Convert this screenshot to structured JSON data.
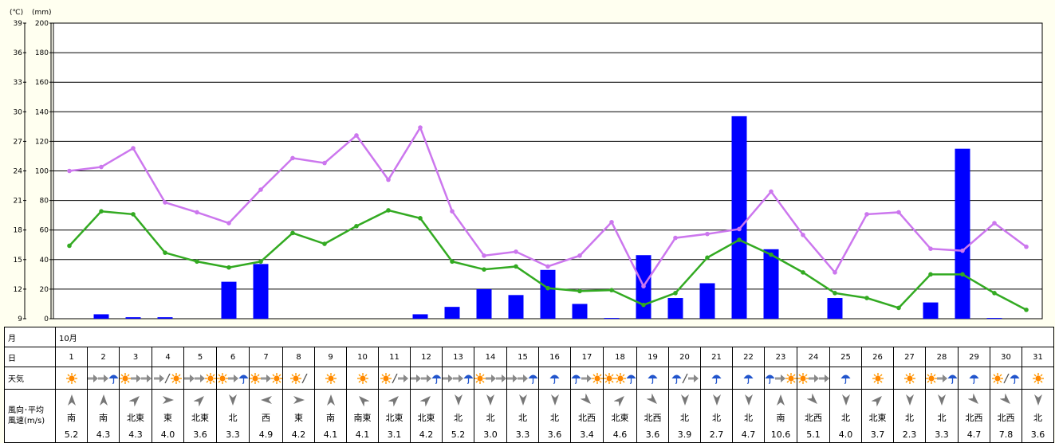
{
  "chart_data": {
    "type": "bar+line",
    "y_left_unit": "(℃)",
    "y_right_unit": "(mm)",
    "y_left_ticks": [
      9,
      12,
      15,
      18,
      21,
      24,
      27,
      30,
      33,
      36,
      39
    ],
    "y_right_ticks": [
      0,
      20,
      40,
      60,
      80,
      100,
      120,
      140,
      160,
      180,
      200
    ],
    "y_left_range": [
      9,
      39
    ],
    "y_right_range": [
      0,
      200
    ],
    "grid": true,
    "categories": [
      "1",
      "2",
      "3",
      "4",
      "5",
      "6",
      "7",
      "8",
      "9",
      "10",
      "11",
      "12",
      "13",
      "14",
      "15",
      "16",
      "17",
      "18",
      "19",
      "20",
      "21",
      "22",
      "23",
      "24",
      "25",
      "26",
      "27",
      "28",
      "29",
      "30",
      "31"
    ],
    "series": [
      {
        "name": "",
        "kind": "bar",
        "axis": "right",
        "color": "#0000ff",
        "values": [
          0,
          3,
          1,
          1,
          0,
          25,
          37,
          0,
          0,
          0,
          0,
          3,
          8,
          20,
          16,
          33,
          10,
          0.5,
          43,
          14,
          24,
          137,
          47,
          0,
          14,
          0,
          0,
          11,
          115,
          0.5,
          0
        ]
      },
      {
        "name": "",
        "kind": "line",
        "axis": "left",
        "color": "#cc77ee",
        "values": [
          24.0,
          24.4,
          26.3,
          20.8,
          19.8,
          18.7,
          22.1,
          25.3,
          24.8,
          27.6,
          23.1,
          28.4,
          19.9,
          15.4,
          15.8,
          14.3,
          15.4,
          18.8,
          12.3,
          17.2,
          17.6,
          18.1,
          21.9,
          17.5,
          13.7,
          19.6,
          19.8,
          16.1,
          15.9,
          18.7,
          16.3
        ]
      },
      {
        "name": "",
        "kind": "line",
        "axis": "left",
        "color": "#33aa22",
        "values": [
          16.4,
          19.9,
          19.6,
          15.7,
          14.8,
          14.2,
          14.8,
          17.7,
          16.6,
          18.4,
          20.0,
          19.2,
          14.8,
          14.0,
          14.3,
          12.1,
          11.8,
          11.9,
          10.4,
          11.6,
          15.2,
          17.0,
          15.5,
          13.7,
          11.6,
          11.1,
          10.1,
          13.5,
          13.5,
          11.6,
          9.9
        ]
      }
    ]
  },
  "table": {
    "month_label": "月",
    "month_value": "10月",
    "day_label": "日",
    "weather_label": "天気",
    "wind_label_line1": "風向･平均",
    "wind_label_line2": "風速(m/s)",
    "days": [
      {
        "d": "1",
        "wx": [
          "sun"
        ],
        "dir": "南",
        "spd": "5.2",
        "rot": 0
      },
      {
        "d": "2",
        "wx": [
          "arrow",
          "arrow",
          "rain"
        ],
        "dir": "南",
        "spd": "4.3",
        "rot": 0
      },
      {
        "d": "3",
        "wx": [
          "sun",
          "arrow",
          "arrow"
        ],
        "dir": "北東",
        "spd": "4.3",
        "rot": 45
      },
      {
        "d": "4",
        "wx": [
          "arrow",
          "slash",
          "sun"
        ],
        "dir": "東",
        "spd": "4.0",
        "rot": 90
      },
      {
        "d": "5",
        "wx": [
          "arrow",
          "arrow",
          "sun"
        ],
        "dir": "北東",
        "spd": "3.6",
        "rot": 45
      },
      {
        "d": "6",
        "wx": [
          "sun",
          "arrow",
          "rain"
        ],
        "dir": "北",
        "spd": "3.3",
        "rot": 180
      },
      {
        "d": "7",
        "wx": [
          "sun",
          "arrow",
          "sun"
        ],
        "dir": "西",
        "spd": "4.9",
        "rot": 270
      },
      {
        "d": "8",
        "wx": [
          "sun",
          "slash"
        ],
        "dir": "東",
        "spd": "4.2",
        "rot": 90
      },
      {
        "d": "9",
        "wx": [
          "sun"
        ],
        "dir": "南",
        "spd": "4.1",
        "rot": 0
      },
      {
        "d": "10",
        "wx": [
          "sun"
        ],
        "dir": "南東",
        "spd": "4.1",
        "rot": 315
      },
      {
        "d": "11",
        "wx": [
          "sun",
          "slash",
          "arrow"
        ],
        "dir": "北東",
        "spd": "3.1",
        "rot": 45
      },
      {
        "d": "12",
        "wx": [
          "arrow",
          "arrow",
          "rain"
        ],
        "dir": "北東",
        "spd": "4.2",
        "rot": 45
      },
      {
        "d": "13",
        "wx": [
          "arrow",
          "arrow",
          "rain"
        ],
        "dir": "北",
        "spd": "5.2",
        "rot": 180
      },
      {
        "d": "14",
        "wx": [
          "sun",
          "arrow",
          "arrow"
        ],
        "dir": "北",
        "spd": "3.0",
        "rot": 180
      },
      {
        "d": "15",
        "wx": [
          "arrow",
          "arrow",
          "rain"
        ],
        "dir": "北",
        "spd": "3.3",
        "rot": 180
      },
      {
        "d": "16",
        "wx": [
          "rain"
        ],
        "dir": "北",
        "spd": "3.6",
        "rot": 180
      },
      {
        "d": "17",
        "wx": [
          "rain",
          "arrow",
          "sun"
        ],
        "dir": "北西",
        "spd": "3.4",
        "rot": 135
      },
      {
        "d": "18",
        "wx": [
          "sun",
          "sun",
          "rain"
        ],
        "dir": "北東",
        "spd": "4.6",
        "rot": 45
      },
      {
        "d": "19",
        "wx": [
          "rain"
        ],
        "dir": "北西",
        "spd": "3.6",
        "rot": 135
      },
      {
        "d": "20",
        "wx": [
          "rain",
          "slash",
          "arrow"
        ],
        "dir": "北",
        "spd": "3.9",
        "rot": 180
      },
      {
        "d": "21",
        "wx": [
          "rain"
        ],
        "dir": "北",
        "spd": "2.7",
        "rot": 180
      },
      {
        "d": "22",
        "wx": [
          "rain"
        ],
        "dir": "北",
        "spd": "4.7",
        "rot": 180
      },
      {
        "d": "23",
        "wx": [
          "rain",
          "arrow",
          "sun"
        ],
        "dir": "南",
        "spd": "10.6",
        "rot": 0
      },
      {
        "d": "24",
        "wx": [
          "sun",
          "arrow",
          "arrow"
        ],
        "dir": "北西",
        "spd": "5.1",
        "rot": 135
      },
      {
        "d": "25",
        "wx": [
          "rain"
        ],
        "dir": "北",
        "spd": "4.0",
        "rot": 180
      },
      {
        "d": "26",
        "wx": [
          "sun"
        ],
        "dir": "北東",
        "spd": "3.7",
        "rot": 45
      },
      {
        "d": "27",
        "wx": [
          "sun"
        ],
        "dir": "北",
        "spd": "2.3",
        "rot": 180
      },
      {
        "d": "28",
        "wx": [
          "sun",
          "arrow",
          "rain"
        ],
        "dir": "北",
        "spd": "3.3",
        "rot": 180
      },
      {
        "d": "29",
        "wx": [
          "rain"
        ],
        "dir": "北西",
        "spd": "4.7",
        "rot": 135
      },
      {
        "d": "30",
        "wx": [
          "sun",
          "slash",
          "rain"
        ],
        "dir": "北西",
        "spd": "7.8",
        "rot": 135
      },
      {
        "d": "31",
        "wx": [
          "sun"
        ],
        "dir": "北",
        "spd": "3.6",
        "rot": 180
      }
    ]
  }
}
